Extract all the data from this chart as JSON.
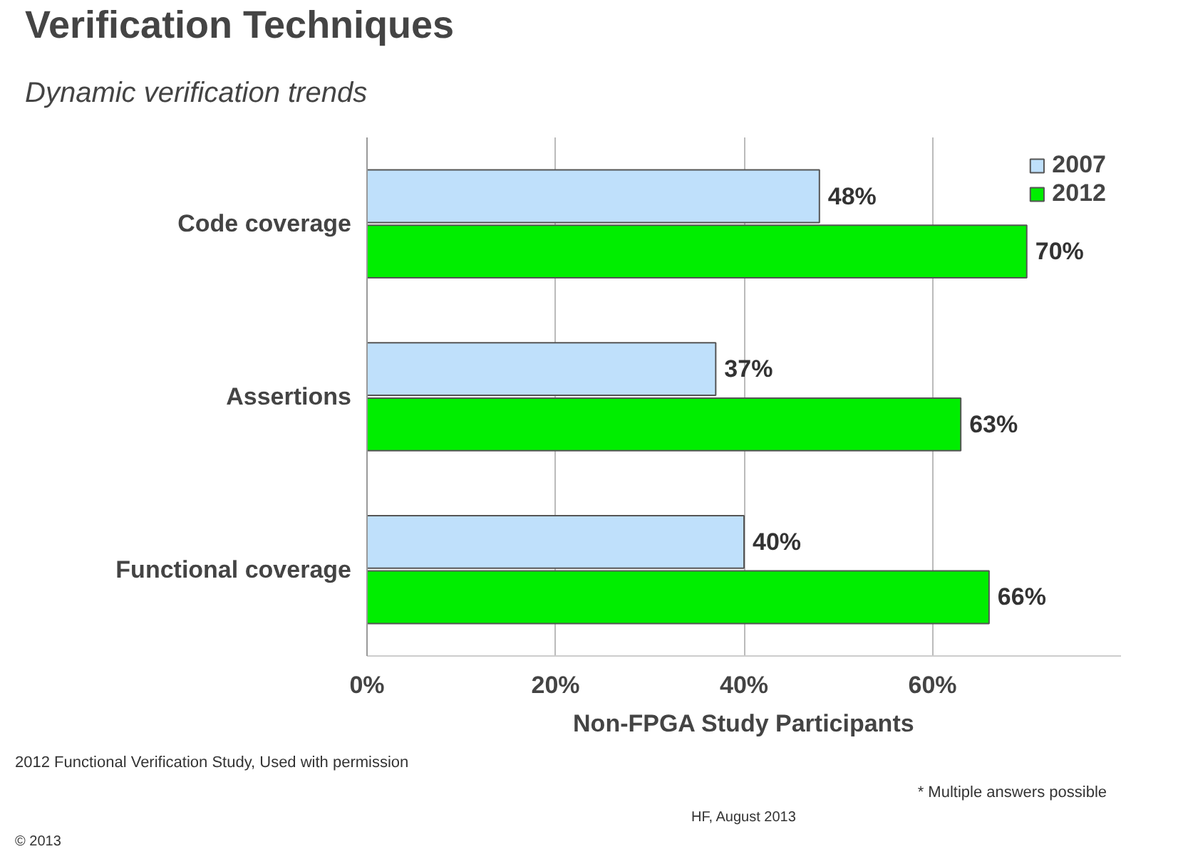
{
  "chart_data": {
    "type": "bar",
    "orientation": "horizontal",
    "title": "Verification Techniques",
    "subtitle": "Dynamic verification trends",
    "xlabel": "Non-FPGA Study Participants",
    "categories": [
      "Code coverage",
      "Assertions",
      "Functional coverage"
    ],
    "series": [
      {
        "name": "2007",
        "color": "#bfe0fb",
        "values": [
          48,
          37,
          40
        ],
        "value_labels": [
          "48%",
          "37%",
          "40%"
        ]
      },
      {
        "name": "2012",
        "color": "#00ee00",
        "values": [
          70,
          63,
          66
        ],
        "value_labels": [
          "70%",
          "63%",
          "66%"
        ]
      }
    ],
    "xlim": [
      0,
      80
    ],
    "xticks": [
      {
        "value": 0,
        "label": "0%"
      },
      {
        "value": 20,
        "label": "20%"
      },
      {
        "value": 40,
        "label": "40%"
      },
      {
        "value": 60,
        "label": "60%"
      }
    ],
    "grid": "x",
    "legend": "top right",
    "annotations": [
      "2012 Functional Verification Study, Used with permission",
      "* Multiple answers possible",
      "HF, August 2013",
      "© 2013"
    ]
  }
}
